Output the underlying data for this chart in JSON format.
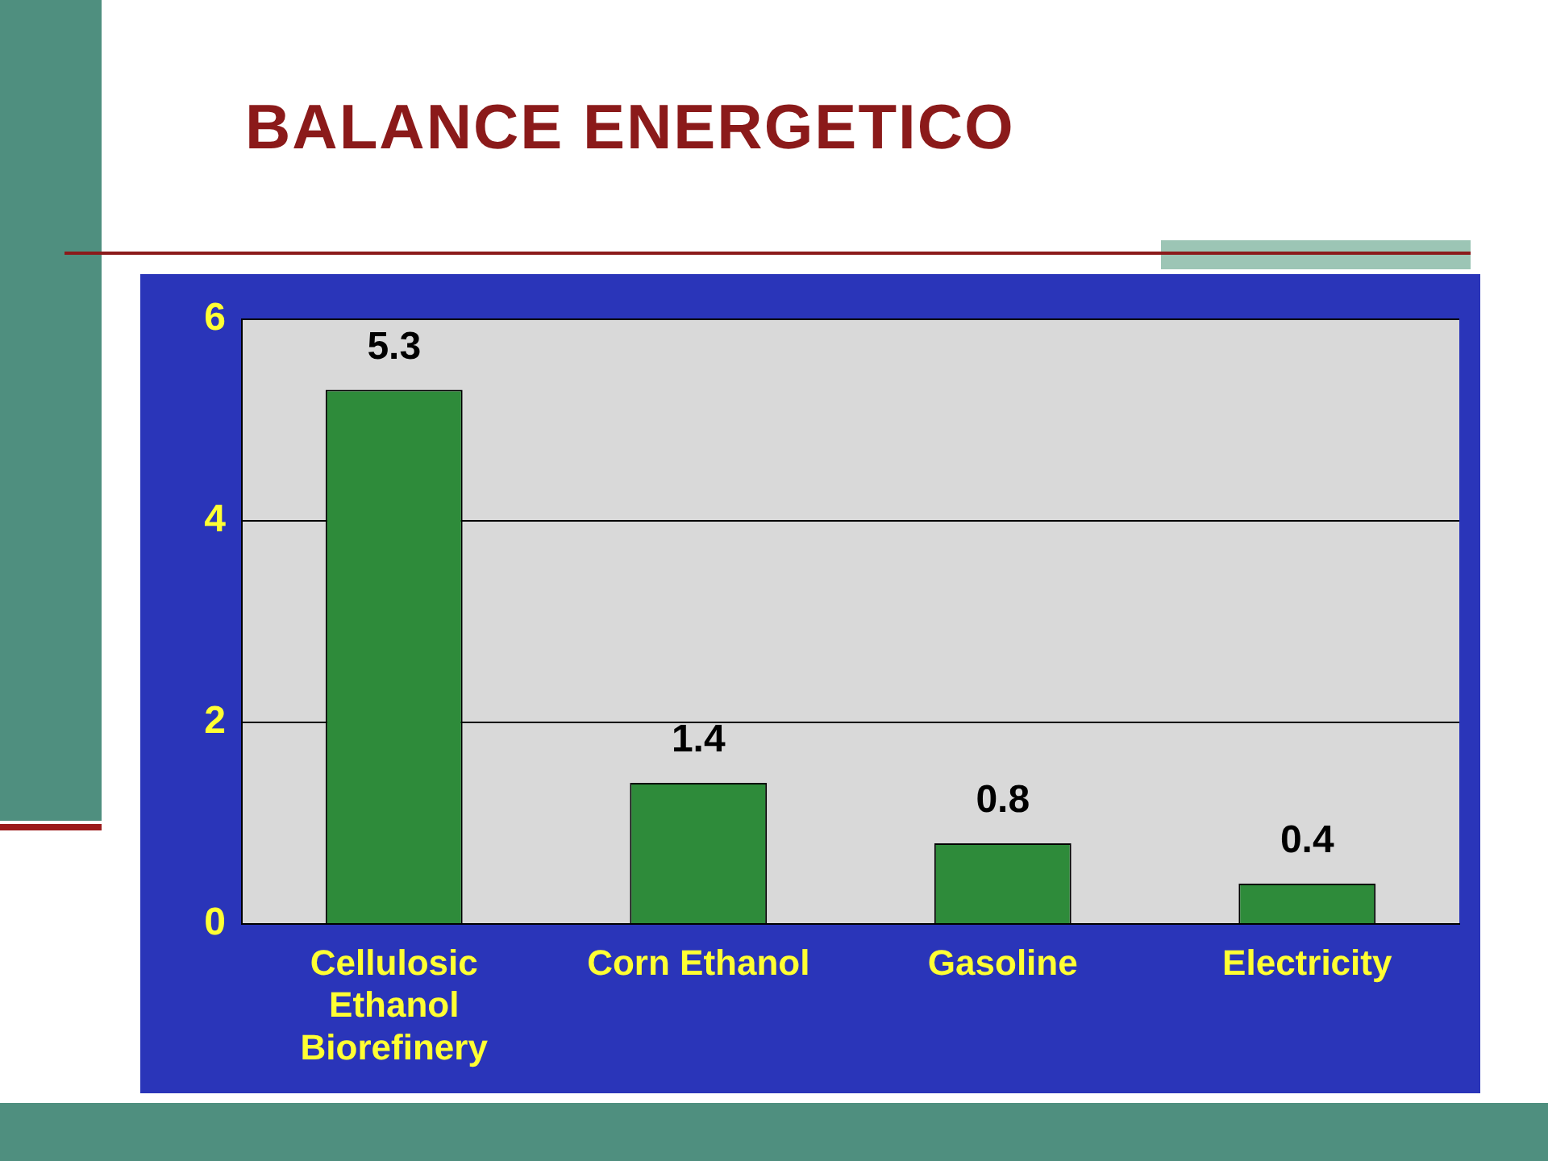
{
  "chart_data": {
    "type": "bar",
    "title": "BALANCE ENERGETICO",
    "categories": [
      "Cellulosic Ethanol Biorefinery",
      "Corn Ethanol",
      "Gasoline",
      "Electricity"
    ],
    "values": [
      5.3,
      1.4,
      0.8,
      0.4
    ],
    "color": "#2e8b3a",
    "ylim": [
      0,
      6
    ],
    "yticks": [
      0,
      2,
      4,
      6
    ],
    "grid": "y",
    "data_labels": true
  }
}
